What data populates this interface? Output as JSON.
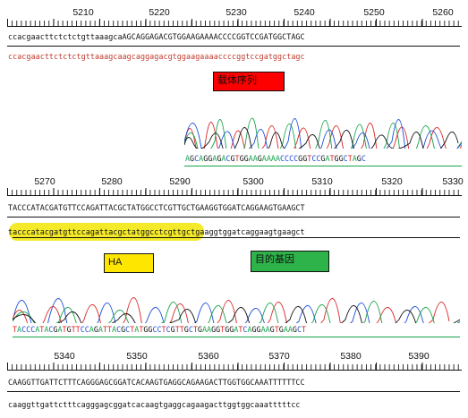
{
  "blocks": [
    {
      "ruler": [
        "5210",
        "5220",
        "5230",
        "5240",
        "5250",
        "5260"
      ],
      "ref_seq": "ccacgaacttctctctgttaaagcaAGCAGGAGACGTGGAAGAAAACCCCGGTCCGATGGCTAGC",
      "read_seq": "ccacgaacttctctctgttaaagcaagcaggagacgtggaagaaaaccccggtccgatggctagc",
      "label": "载体序列",
      "called_seq": "AGCAGGAGACGTGGAAGAAAACCCCGGTCCGATGGCTAGC"
    },
    {
      "ruler": [
        "5270",
        "5280",
        "5290",
        "5300",
        "5310",
        "5320",
        "5330"
      ],
      "ref_seq": "TACCCATACGATGTTCCAGATTACGCTATGGCCTCGTTGCTGAAGGTGGATCAGGAAGTGAAGCT",
      "read_seq": "tacccatacgatgttccagattacgctatggcctcgttgctgaaggtggatcaggaagtgaagct",
      "label_ha": "HA",
      "label_gene": "目的基因",
      "called_seq": "TACCCATACGATGTTCCAGATTACGCTATGGCCTCGTTGCTGAAGGTGGATCAGGAAGTGAAGCT"
    },
    {
      "ruler": [
        "5340",
        "5350",
        "5360",
        "5370",
        "5380",
        "5390"
      ],
      "ref_seq": "CAAGGTTGATTCTTTCAGGGAGCGGATCACAAGTGAGGCAGAAGACTTGGTGGCAAATTTTTTCC",
      "read_seq": "caaggttgattctttcagggagcggatcacaagtgaggcagaagacttggtggcaaatttttcc"
    }
  ],
  "colors": {
    "vector_label": "#ff0000",
    "ha_label": "#ffe600",
    "gene_label": "#2db34a",
    "highlight": "#f5ea2a",
    "base_A": "#16a34a",
    "base_C": "#1d4ed8",
    "base_G": "#111111",
    "base_T": "#dc2626"
  }
}
